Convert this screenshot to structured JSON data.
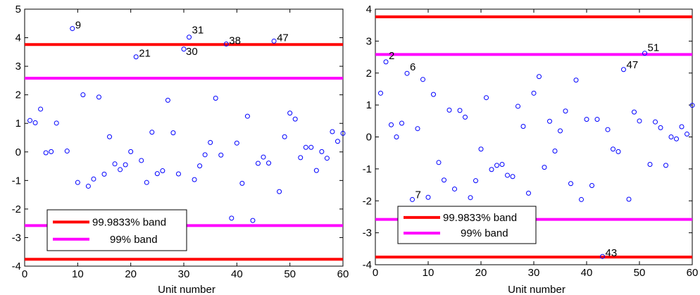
{
  "colors": {
    "outer_band": "#ff0000",
    "inner_band": "#ff00ff",
    "points": "#0000ff"
  },
  "chart_data": [
    {
      "type": "scatter",
      "xlabel": "Unit number",
      "ylabel": "",
      "xlim": [
        0,
        60
      ],
      "ylim": [
        -4,
        5
      ],
      "xticks": [
        0,
        10,
        20,
        30,
        40,
        50,
        60
      ],
      "yticks": [
        -4,
        -3,
        -2,
        -1,
        0,
        1,
        2,
        3,
        4,
        5
      ],
      "bands": [
        {
          "name": "99.9833% band",
          "values": [
            -3.76,
            3.76
          ],
          "color": "#ff0000"
        },
        {
          "name": "99% band",
          "values": [
            -2.58,
            2.58
          ],
          "color": "#ff00ff"
        }
      ],
      "legend": {
        "location": "lower-left",
        "entries": [
          "99.9833% band",
          "99% band"
        ]
      },
      "grid": false,
      "x": [
        1,
        2,
        3,
        4,
        5,
        6,
        7,
        8,
        9,
        10,
        11,
        12,
        13,
        14,
        15,
        16,
        17,
        18,
        19,
        20,
        21,
        22,
        23,
        24,
        25,
        26,
        27,
        28,
        29,
        30,
        31,
        32,
        33,
        34,
        35,
        36,
        37,
        38,
        39,
        40,
        41,
        42,
        43,
        44,
        45,
        46,
        47,
        48,
        49,
        50,
        51,
        52,
        53,
        54,
        55,
        56,
        57,
        58,
        59,
        60
      ],
      "y": [
        1.1,
        1.02,
        1.5,
        -0.03,
        0.01,
        1.01,
        -2.12,
        0.03,
        4.32,
        -1.07,
        2.0,
        -1.2,
        -0.95,
        1.92,
        -0.78,
        0.53,
        -0.42,
        -0.62,
        -0.45,
        0.01,
        3.33,
        -0.3,
        -1.07,
        0.69,
        -0.76,
        -0.66,
        1.81,
        0.67,
        -0.77,
        3.6,
        4.02,
        -0.97,
        -0.49,
        -0.1,
        0.33,
        1.88,
        -0.11,
        3.78,
        -2.32,
        0.31,
        -1.1,
        1.25,
        -2.4,
        -0.4,
        -0.18,
        -0.39,
        3.88,
        -1.39,
        0.53,
        1.36,
        1.15,
        -0.2,
        0.16,
        0.16,
        -0.65,
        0.01,
        -0.22,
        0.71,
        0.37,
        0.65
      ],
      "labeled_points": [
        {
          "x": 9,
          "label": "9"
        },
        {
          "x": 21,
          "label": "21"
        },
        {
          "x": 30,
          "label": "30"
        },
        {
          "x": 31,
          "label": "31"
        },
        {
          "x": 38,
          "label": "38"
        },
        {
          "x": 47,
          "label": "47"
        }
      ]
    },
    {
      "type": "scatter",
      "xlabel": "Unit number",
      "ylabel": "",
      "xlim": [
        0,
        60
      ],
      "ylim": [
        -4,
        4
      ],
      "xticks": [
        0,
        10,
        20,
        30,
        40,
        50,
        60
      ],
      "yticks": [
        -4,
        -3,
        -2,
        -1,
        0,
        1,
        2,
        3,
        4
      ],
      "bands": [
        {
          "name": "99.9833% band",
          "values": [
            -3.76,
            3.76
          ],
          "color": "#ff0000"
        },
        {
          "name": "99% band",
          "values": [
            -2.58,
            2.58
          ],
          "color": "#ff00ff"
        }
      ],
      "legend": {
        "location": "lower-left",
        "entries": [
          "99.9833% band",
          "99% band"
        ]
      },
      "grid": false,
      "x": [
        1,
        2,
        3,
        4,
        5,
        6,
        7,
        8,
        9,
        10,
        11,
        12,
        13,
        14,
        15,
        16,
        17,
        18,
        19,
        20,
        21,
        22,
        23,
        24,
        25,
        26,
        27,
        28,
        29,
        30,
        31,
        32,
        33,
        34,
        35,
        36,
        37,
        38,
        39,
        40,
        41,
        42,
        43,
        44,
        45,
        46,
        47,
        48,
        49,
        50,
        51,
        52,
        53,
        54,
        55,
        56,
        57,
        58,
        59,
        60
      ],
      "y": [
        1.37,
        2.35,
        0.38,
        0.0,
        0.43,
        1.99,
        -1.96,
        0.26,
        1.8,
        -1.89,
        1.33,
        -0.8,
        -1.35,
        0.84,
        -1.63,
        0.83,
        0.62,
        -1.9,
        -1.37,
        -0.38,
        1.23,
        -1.02,
        -0.89,
        -0.86,
        -1.2,
        -1.24,
        0.96,
        0.33,
        -1.76,
        1.37,
        1.89,
        -0.95,
        0.49,
        -0.44,
        0.19,
        0.81,
        -1.46,
        1.78,
        -1.96,
        0.55,
        -1.52,
        0.55,
        -3.74,
        0.23,
        -0.38,
        -0.46,
        2.11,
        -1.95,
        0.78,
        0.5,
        2.62,
        -0.86,
        0.47,
        0.29,
        -0.89,
        0.0,
        -0.06,
        0.32,
        0.09,
        0.99
      ],
      "labeled_points": [
        {
          "x": 2,
          "label": "2"
        },
        {
          "x": 6,
          "label": "6"
        },
        {
          "x": 7,
          "label": "7"
        },
        {
          "x": 43,
          "label": "43"
        },
        {
          "x": 47,
          "label": "47"
        },
        {
          "x": 51,
          "label": "51"
        }
      ]
    }
  ]
}
